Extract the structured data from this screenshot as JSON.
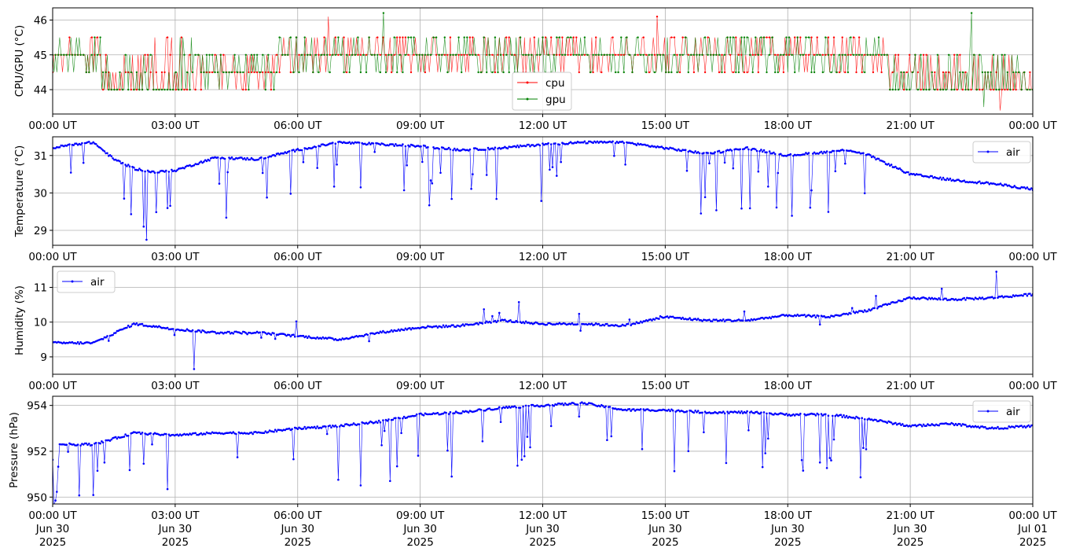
{
  "x_ticks": [
    "00:00 UT",
    "03:00 UT",
    "06:00 UT",
    "09:00 UT",
    "12:00 UT",
    "15:00 UT",
    "18:00 UT",
    "21:00 UT",
    "00:00 UT"
  ],
  "x_dates": [
    "Jun 30",
    "Jun 30",
    "Jun 30",
    "Jun 30",
    "Jun 30",
    "Jun 30",
    "Jun 30",
    "Jun 30",
    "Jul 01"
  ],
  "x_years": [
    "2025",
    "2025",
    "2025",
    "2025",
    "2025",
    "2025",
    "2025",
    "2025",
    "2025"
  ],
  "colors": {
    "cpu": "#ff0000",
    "gpu": "#008000",
    "air": "#0000ff",
    "grid": "#b0b0b0"
  },
  "chart_data": [
    {
      "type": "line",
      "ylabel": "CPU/GPU (°C)",
      "ylim": [
        43.3,
        46.35
      ],
      "yticks": [
        44,
        45,
        46
      ],
      "x_range_hours": [
        0,
        24
      ],
      "legend": "bottom-center",
      "series": [
        {
          "name": "cpu",
          "color": "#ff0000",
          "base_values": [
            45,
            44.5,
            44,
            45,
            45,
            45,
            45,
            45,
            45,
            45,
            44.5,
            44.5,
            44
          ],
          "spike_values": [
            46.1,
            46.1,
            43.4
          ]
        },
        {
          "name": "gpu",
          "color": "#008000",
          "base_values": [
            45,
            44.5,
            44.5,
            45,
            45,
            45,
            45,
            45,
            45,
            45,
            44,
            44,
            44
          ],
          "spike_values": [
            46.2,
            46.2,
            43.5
          ]
        }
      ]
    },
    {
      "type": "line",
      "ylabel": "Temperature (°C)",
      "ylim": [
        28.6,
        31.5
      ],
      "yticks": [
        29,
        30,
        31
      ],
      "x_range_hours": [
        0,
        24
      ],
      "legend": "top-right",
      "series": [
        {
          "name": "air",
          "color": "#0000ff",
          "x_hours": [
            0,
            0.5,
            1,
            1.5,
            2,
            2.5,
            3,
            4,
            5,
            6,
            7,
            8,
            9,
            10,
            11,
            12,
            13,
            14,
            15,
            16,
            17,
            18,
            19,
            19.5,
            20,
            21,
            22,
            23,
            24
          ],
          "values": [
            31.2,
            31.3,
            31.35,
            30.9,
            30.65,
            30.55,
            30.6,
            30.95,
            30.9,
            31.15,
            31.35,
            31.3,
            31.25,
            31.15,
            31.2,
            31.3,
            31.35,
            31.35,
            31.2,
            31.05,
            31.2,
            31.0,
            31.1,
            31.15,
            31.0,
            30.5,
            30.35,
            30.25,
            30.1
          ],
          "min_dip": 28.75
        }
      ]
    },
    {
      "type": "line",
      "ylabel": "Humidity (%)",
      "ylim": [
        8.5,
        11.6
      ],
      "yticks": [
        9,
        10,
        11
      ],
      "x_range_hours": [
        0,
        24
      ],
      "legend": "top-left",
      "series": [
        {
          "name": "air",
          "color": "#0000ff",
          "x_hours": [
            0,
            1,
            2,
            3,
            4,
            5,
            6,
            7,
            8,
            9,
            10,
            11,
            12,
            13,
            14,
            15,
            16,
            17,
            18,
            19,
            20,
            21,
            22,
            23,
            24
          ],
          "values": [
            9.4,
            9.4,
            9.95,
            9.8,
            9.7,
            9.7,
            9.6,
            9.5,
            9.7,
            9.85,
            9.9,
            10.05,
            9.95,
            9.95,
            9.9,
            10.15,
            10.05,
            10.05,
            10.2,
            10.15,
            10.35,
            10.7,
            10.65,
            10.7,
            10.8
          ],
          "max_spike": 11.45,
          "min_dip": 8.65
        }
      ]
    },
    {
      "type": "line",
      "ylabel": "Pressure (hPa)",
      "ylim": [
        949.7,
        954.4
      ],
      "yticks": [
        950,
        952,
        954
      ],
      "x_range_hours": [
        0,
        24
      ],
      "legend": "top-right",
      "series": [
        {
          "name": "air",
          "color": "#0000ff",
          "x_hours": [
            0,
            1,
            2,
            3,
            4,
            5,
            6,
            7,
            8,
            9,
            10,
            11,
            12,
            13,
            14,
            15,
            16,
            17,
            18,
            19,
            20,
            21,
            22,
            23,
            24
          ],
          "values": [
            952.3,
            952.3,
            952.8,
            952.7,
            952.8,
            952.8,
            953.0,
            953.1,
            953.3,
            953.6,
            953.7,
            953.9,
            954.0,
            954.1,
            953.8,
            953.8,
            953.7,
            953.7,
            953.6,
            953.6,
            953.4,
            953.1,
            953.2,
            953.0,
            953.1
          ],
          "min_dip": 949.85
        }
      ]
    }
  ]
}
